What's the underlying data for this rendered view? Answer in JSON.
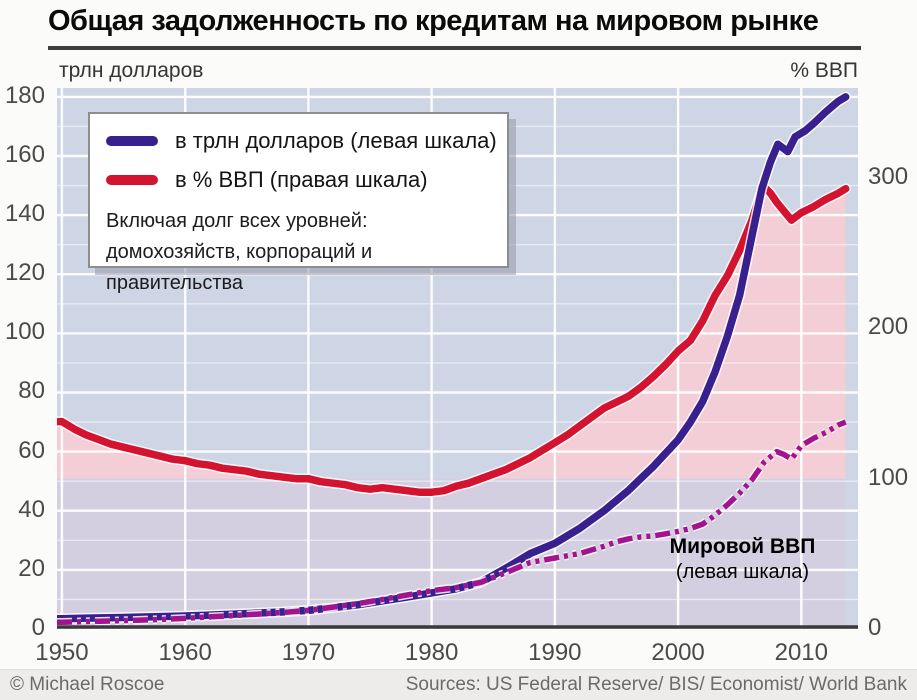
{
  "header": {
    "title": "Общая задолженность по кредитам на мировом рынке",
    "left_axis_unit": "трлн долларов",
    "right_axis_unit": "% ВВП"
  },
  "legend": {
    "items": [
      {
        "label": "в трлн долларов (левая шкала)",
        "color": "#38208f"
      },
      {
        "label": "в % ВВП (правая шкала)",
        "color": "#d41330"
      }
    ],
    "note_line1": "Включая долг всех уровней:",
    "note_line2": "домохозяйств, корпораций и правительства"
  },
  "annotation": {
    "line1": "Мировой ВВП",
    "line2": "(левая шкала)"
  },
  "footer": {
    "credit": "© Michael Roscoe",
    "sources": "Sources: US Federal Reserve/ BIS/ Economist/ World Bank"
  },
  "chart_data": {
    "type": "line",
    "title": "Общая задолженность по кредитам на мировом рынке",
    "x_range": [
      1949.6,
      2014.6
    ],
    "x_ticks": [
      1950,
      1960,
      1970,
      1980,
      1990,
      2000,
      2010
    ],
    "left_axis": {
      "label": "трлн долларов",
      "range": [
        0,
        183
      ],
      "ticks": [
        0,
        20,
        40,
        60,
        80,
        100,
        120,
        140,
        160,
        180
      ],
      "minor_step": 10
    },
    "right_axis": {
      "label": "% ВВП",
      "range": [
        0,
        360
      ],
      "ticks": [
        0,
        100,
        200,
        300
      ]
    },
    "grid": "on",
    "legend_position": "top-left",
    "fills_end_year": 2013.6,
    "colors": {
      "plot_bg": "#ced5e4",
      "debt_fill": "#f3ced6",
      "gdp_fill": "#d4cfe0",
      "grid": "#ffffff",
      "axis_line": "#3a3a3a"
    },
    "series": [
      {
        "name": "debt_pct_gdp",
        "legend": "в % ВВП (правая шкала)",
        "axis": "right",
        "color": "#d41330",
        "style": "solid",
        "width": 7.5,
        "points": [
          [
            1949.6,
            138
          ],
          [
            1950,
            138
          ],
          [
            1951,
            133
          ],
          [
            1952,
            129
          ],
          [
            1953,
            126
          ],
          [
            1954,
            123
          ],
          [
            1955,
            121
          ],
          [
            1956,
            119
          ],
          [
            1957,
            117
          ],
          [
            1958,
            115
          ],
          [
            1959,
            113
          ],
          [
            1960,
            112
          ],
          [
            1961,
            110
          ],
          [
            1962,
            109
          ],
          [
            1963,
            107
          ],
          [
            1964,
            106
          ],
          [
            1965,
            105
          ],
          [
            1966,
            103
          ],
          [
            1967,
            102
          ],
          [
            1968,
            101
          ],
          [
            1969,
            100
          ],
          [
            1970,
            100
          ],
          [
            1971,
            98
          ],
          [
            1972,
            97
          ],
          [
            1973,
            96
          ],
          [
            1974,
            94
          ],
          [
            1975,
            93
          ],
          [
            1976,
            94
          ],
          [
            1977,
            93
          ],
          [
            1978,
            92
          ],
          [
            1979,
            91
          ],
          [
            1980,
            91
          ],
          [
            1981,
            92
          ],
          [
            1982,
            95
          ],
          [
            1983,
            97
          ],
          [
            1984,
            100
          ],
          [
            1985,
            103
          ],
          [
            1986,
            106
          ],
          [
            1987,
            110
          ],
          [
            1988,
            114
          ],
          [
            1989,
            119
          ],
          [
            1990,
            124
          ],
          [
            1991,
            129
          ],
          [
            1992,
            135
          ],
          [
            1993,
            141
          ],
          [
            1994,
            147
          ],
          [
            1995,
            151
          ],
          [
            1996,
            155
          ],
          [
            1997,
            161
          ],
          [
            1998,
            168
          ],
          [
            1999,
            176
          ],
          [
            2000,
            185
          ],
          [
            2001,
            192
          ],
          [
            2002,
            205
          ],
          [
            2003,
            222
          ],
          [
            2004,
            235
          ],
          [
            2005,
            252
          ],
          [
            2006,
            272
          ],
          [
            2006.9,
            295
          ],
          [
            2007.5,
            290
          ],
          [
            2008,
            284
          ],
          [
            2008.6,
            278
          ],
          [
            2009.2,
            272
          ],
          [
            2010,
            277
          ],
          [
            2011,
            281
          ],
          [
            2012,
            286
          ],
          [
            2013,
            290
          ],
          [
            2013.6,
            293
          ]
        ]
      },
      {
        "name": "total_debt_trln_usd",
        "legend": "в трлн долларов (левая шкала)",
        "axis": "left",
        "color": "#38208f",
        "style": "solid",
        "width": 7.5,
        "points": [
          [
            1949.6,
            3.5
          ],
          [
            1950,
            3.5
          ],
          [
            1952,
            3.7
          ],
          [
            1955,
            3.9
          ],
          [
            1958,
            4.2
          ],
          [
            1960,
            4.4
          ],
          [
            1962,
            4.7
          ],
          [
            1965,
            5.2
          ],
          [
            1968,
            5.8
          ],
          [
            1970,
            6.3
          ],
          [
            1972,
            7.2
          ],
          [
            1974,
            8.2
          ],
          [
            1976,
            9.5
          ],
          [
            1978,
            10.8
          ],
          [
            1980,
            12.2
          ],
          [
            1982,
            13.6
          ],
          [
            1984,
            15.8
          ],
          [
            1986,
            20.5
          ],
          [
            1988,
            25.5
          ],
          [
            1990,
            29
          ],
          [
            1991,
            31.5
          ],
          [
            1992,
            34
          ],
          [
            1993,
            37
          ],
          [
            1994,
            40
          ],
          [
            1995,
            43.5
          ],
          [
            1996,
            47
          ],
          [
            1997,
            51
          ],
          [
            1998,
            55
          ],
          [
            1999,
            59.5
          ],
          [
            2000,
            64
          ],
          [
            2001,
            70
          ],
          [
            2002,
            77
          ],
          [
            2003,
            87
          ],
          [
            2004,
            99
          ],
          [
            2005,
            113
          ],
          [
            2006,
            133
          ],
          [
            2006.8,
            149
          ],
          [
            2007.5,
            158
          ],
          [
            2008.1,
            164
          ],
          [
            2008.9,
            161.5
          ],
          [
            2009.5,
            166.5
          ],
          [
            2010.3,
            168.5
          ],
          [
            2011,
            171
          ],
          [
            2012,
            175
          ],
          [
            2013,
            178.5
          ],
          [
            2013.6,
            180
          ]
        ]
      },
      {
        "name": "world_gdp_trln_usd",
        "legend": "Мировой ВВП (левая шкала)",
        "axis": "left",
        "color": "#a4138f",
        "style": "dashdot",
        "width": 5.5,
        "points": [
          [
            1949.6,
            2.3
          ],
          [
            1950,
            2.3
          ],
          [
            1952,
            2.5
          ],
          [
            1955,
            2.8
          ],
          [
            1958,
            3.2
          ],
          [
            1960,
            3.6
          ],
          [
            1962,
            4.1
          ],
          [
            1965,
            4.8
          ],
          [
            1968,
            5.6
          ],
          [
            1970,
            6.3
          ],
          [
            1972,
            7.4
          ],
          [
            1974,
            8.6
          ],
          [
            1976,
            10
          ],
          [
            1978,
            11.5
          ],
          [
            1980,
            13
          ],
          [
            1982,
            14
          ],
          [
            1984,
            15.8
          ],
          [
            1986,
            19
          ],
          [
            1988,
            22.5
          ],
          [
            1990,
            24
          ],
          [
            1992,
            25.5
          ],
          [
            1994,
            28
          ],
          [
            1995,
            29.5
          ],
          [
            1996,
            30.5
          ],
          [
            1997,
            31.2
          ],
          [
            1998,
            31.5
          ],
          [
            1999,
            32.2
          ],
          [
            2000,
            33
          ],
          [
            2001,
            34
          ],
          [
            2002,
            35.5
          ],
          [
            2003,
            38.5
          ],
          [
            2004,
            42
          ],
          [
            2005,
            46
          ],
          [
            2006,
            50.5
          ],
          [
            2007,
            56.5
          ],
          [
            2008,
            60
          ],
          [
            2008.6,
            59
          ],
          [
            2009.2,
            57.5
          ],
          [
            2010,
            62
          ],
          [
            2011,
            64.5
          ],
          [
            2012,
            66.5
          ],
          [
            2013,
            69
          ],
          [
            2013.6,
            70
          ]
        ]
      }
    ]
  }
}
